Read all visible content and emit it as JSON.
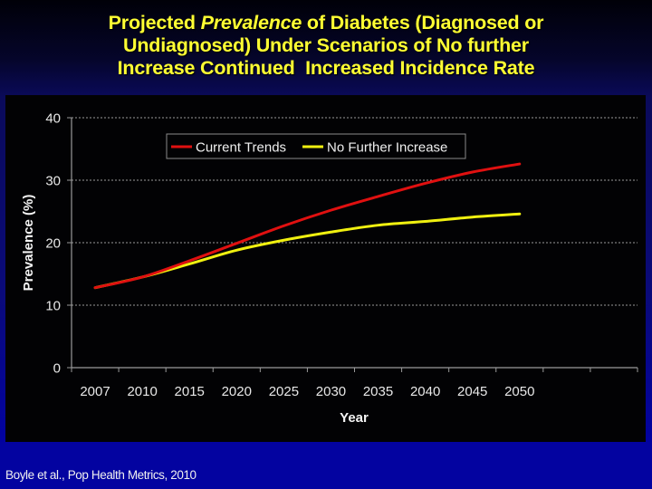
{
  "slide": {
    "title_lines": [
      [
        "Projected ",
        "Prevalence",
        " of Diabetes (Diagnosed or"
      ],
      "Undiagnosed) Under Scenarios of No further",
      "Increase Continued  Increased Incidence Rate"
    ],
    "citation": "Boyle et al., Pop Health Metrics, 2010",
    "colors": {
      "title": "#ffff33",
      "panel": "#020204",
      "band": "#0303a0"
    }
  },
  "chart_data": {
    "type": "line",
    "title": "Projected Prevalence of Diabetes (Diagnosed or Undiagnosed) Under Scenarios of No further Increase Continued Increased Incidence Rate",
    "xlabel": "Year",
    "ylabel": "Prevalence (%)",
    "categories": [
      "2007",
      "2010",
      "2015",
      "2020",
      "2025",
      "2030",
      "2035",
      "2040",
      "2045",
      "2050",
      "",
      ""
    ],
    "ylim": [
      0,
      40
    ],
    "yticks": [
      0,
      10,
      20,
      30,
      40
    ],
    "grid": true,
    "legend_position": "top-center",
    "series": [
      {
        "name": "Current Trends",
        "color": "#e01010",
        "values": [
          12.8,
          14.5,
          17.1,
          19.9,
          22.7,
          25.2,
          27.4,
          29.5,
          31.3,
          32.6
        ]
      },
      {
        "name": "No Further Increase",
        "color": "#f0f010",
        "values": [
          12.8,
          14.5,
          16.6,
          18.8,
          20.4,
          21.7,
          22.8,
          23.4,
          24.1,
          24.6
        ]
      }
    ]
  }
}
